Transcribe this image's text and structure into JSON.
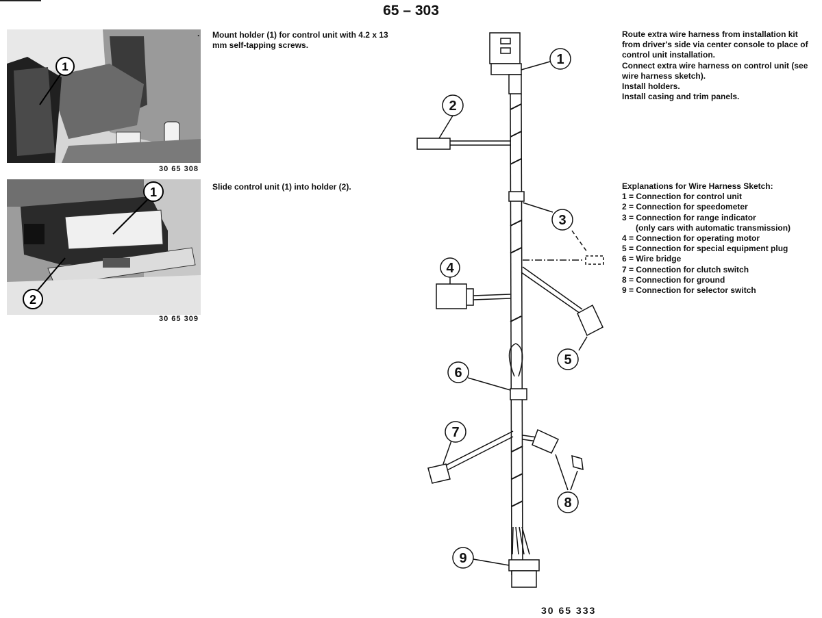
{
  "page": {
    "number": "65 – 303"
  },
  "photo1": {
    "figure_number": "30 65 308",
    "callouts": [
      "1"
    ],
    "bullet": "·",
    "text": "Mount holder (1) for control unit with 4.2 x 13 mm self-tapping screws."
  },
  "photo2": {
    "figure_number": "30 65 309",
    "callouts": [
      "1",
      "2"
    ],
    "text": "Slide control unit (1) into holder (2)."
  },
  "instructions": [
    "Route extra wire harness from installation kit",
    "from driver's side via center console to place of",
    "control unit installation.",
    "Connect extra wire harness on control unit (see",
    "wire harness sketch).",
    "Install holders.",
    "Install casing and trim panels."
  ],
  "explanations": {
    "heading": "Explanations for Wire Harness Sketch:",
    "items": [
      "1 = Connection for control unit",
      "2 = Connection for speedometer",
      "3 = Connection for range indicator",
      "      (only cars with automatic transmission)",
      "4 = Connection for operating motor",
      "5 = Connection for special equipment plug",
      "6 = Wire bridge",
      "7 = Connection for clutch switch",
      "8 = Connection for ground",
      "9 = Connection for selector switch"
    ]
  },
  "diagram": {
    "figure_number": "30 65 333",
    "callouts": [
      "1",
      "2",
      "3",
      "4",
      "5",
      "6",
      "7",
      "8",
      "9"
    ]
  }
}
